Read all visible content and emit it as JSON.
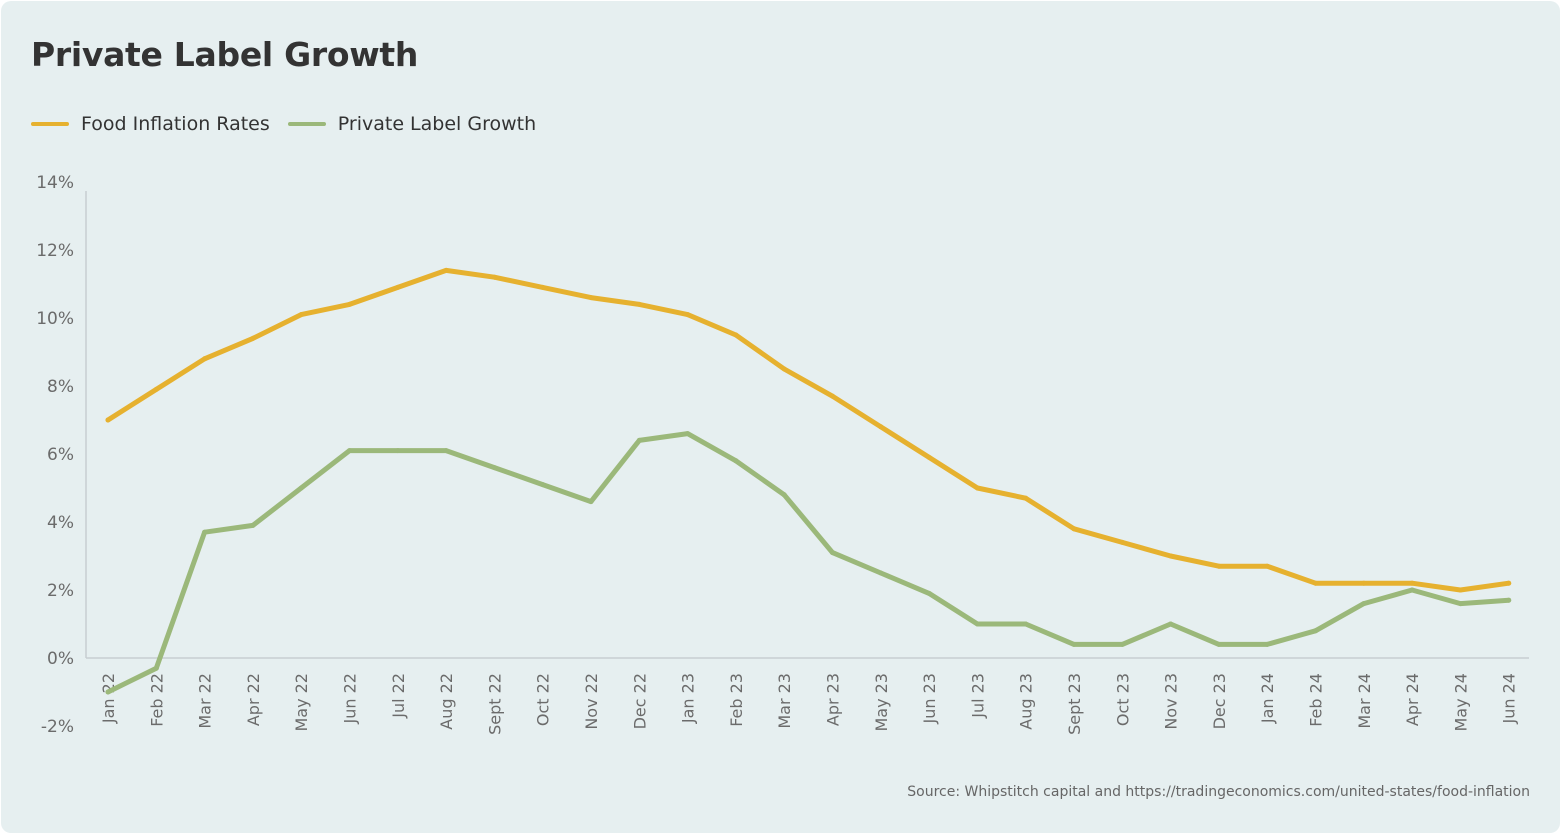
{
  "title": "Private Label Growth",
  "colors": {
    "food_inflation": "#e6b12f",
    "private_label": "#9bb87a",
    "axis": "#c7ced1",
    "background": "#e6eff0"
  },
  "source": "Source: Whipstitch capital and https://tradingeconomics.com/united-states/food-inflation",
  "chart_data": {
    "type": "line",
    "title": "Private Label Growth",
    "xlabel": "",
    "ylabel": "",
    "ylim": [
      -2,
      14
    ],
    "yticks": [
      -2,
      0,
      2,
      4,
      6,
      8,
      10,
      12,
      14
    ],
    "ytick_labels": [
      "-2%",
      "0%",
      "2%",
      "4%",
      "6%",
      "8%",
      "10%",
      "12%",
      "14%"
    ],
    "grid": false,
    "legend_position": "top-left",
    "categories": [
      "Jan 22",
      "Feb 22",
      "Mar 22",
      "Apr 22",
      "May 22",
      "Jun 22",
      "Jul 22",
      "Aug 22",
      "Sept 22",
      "Oct 22",
      "Nov 22",
      "Dec 22",
      "Jan 23",
      "Feb 23",
      "Mar 23",
      "Apr 23",
      "May 23",
      "Jun 23",
      "Jul 23",
      "Aug 23",
      "Sept 23",
      "Oct 23",
      "Nov 23",
      "Dec 23",
      "Jan 24",
      "Feb 24",
      "Mar 24",
      "Apr 24",
      "May 24",
      "Jun 24"
    ],
    "series": [
      {
        "name": "Food Inflation Rates",
        "color": "#e6b12f",
        "values": [
          7.0,
          7.9,
          8.8,
          9.4,
          10.1,
          10.4,
          10.9,
          11.4,
          11.2,
          10.9,
          10.6,
          10.4,
          10.1,
          9.5,
          8.5,
          7.7,
          6.8,
          5.9,
          5.0,
          4.7,
          3.8,
          3.4,
          3.0,
          2.7,
          2.7,
          2.2,
          2.2,
          2.2,
          2.0,
          2.2
        ]
      },
      {
        "name": "Private Label Growth",
        "color": "#9bb87a",
        "values": [
          -1.0,
          -0.3,
          3.7,
          3.9,
          5.0,
          6.1,
          6.1,
          6.1,
          5.6,
          5.1,
          4.6,
          6.4,
          6.6,
          5.8,
          4.8,
          3.1,
          2.5,
          1.9,
          1.0,
          1.0,
          0.4,
          0.4,
          1.0,
          0.4,
          0.4,
          0.8,
          1.6,
          2.0,
          1.6,
          1.7
        ]
      }
    ]
  }
}
